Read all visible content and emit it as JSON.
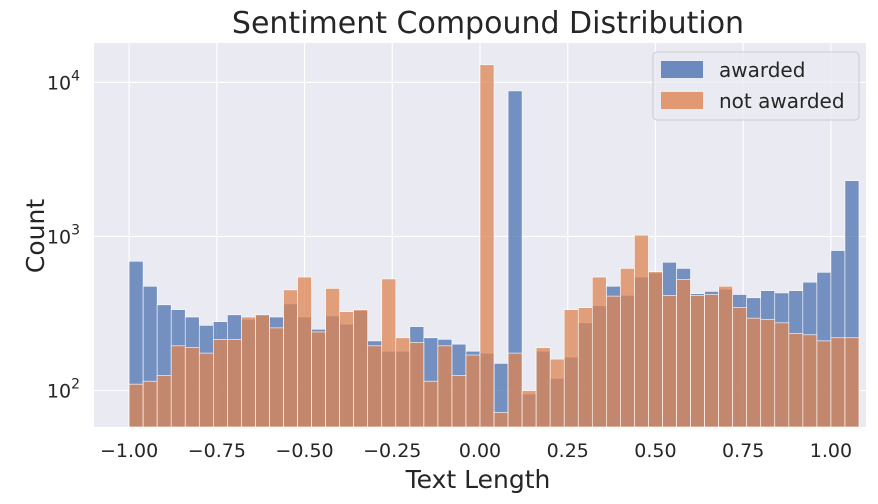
{
  "chart_data": {
    "type": "bar",
    "title": "Sentiment Compound Distribution",
    "xlabel": "Text Length",
    "ylabel": "Count",
    "yscale": "log",
    "xlim": [
      -1.1,
      1.1
    ],
    "ylim": [
      58,
      18000
    ],
    "x_ticks": [
      -1.0,
      -0.75,
      -0.5,
      -0.25,
      0.0,
      0.25,
      0.5,
      0.75,
      1.0
    ],
    "x_tick_labels": [
      "−1.00",
      "−0.75",
      "−0.50",
      "−0.25",
      "0.00",
      "0.25",
      "0.50",
      "0.75",
      "1.00"
    ],
    "y_ticks": [
      100,
      1000,
      10000
    ],
    "y_tick_bases": [
      "10",
      "10",
      "10"
    ],
    "y_tick_exponents": [
      "2",
      "3",
      "4"
    ],
    "grid": true,
    "legend_position": "top-right",
    "bin_start": -1.0,
    "bin_width": 0.04,
    "series": [
      {
        "name": "awarded",
        "color": "#4c72b0",
        "values": [
          690,
          475,
          360,
          335,
          300,
          265,
          280,
          310,
          290,
          310,
          300,
          365,
          300,
          250,
          305,
          270,
          330,
          210,
          180,
          180,
          260,
          220,
          215,
          200,
          180,
          175,
          150,
          8800,
          95,
          180,
          120,
          165,
          275,
          355,
          475,
          415,
          545,
          580,
          680,
          620,
          425,
          440,
          455,
          420,
          400,
          445,
          430,
          445,
          505,
          585,
          810,
          2300
        ]
      },
      {
        "name": "not awarded",
        "color": "#dd8452",
        "values": [
          110,
          115,
          125,
          195,
          190,
          175,
          215,
          215,
          300,
          310,
          255,
          450,
          545,
          240,
          460,
          325,
          335,
          195,
          530,
          220,
          205,
          115,
          195,
          125,
          170,
          13000,
          72,
          175,
          100,
          190,
          160,
          335,
          345,
          545,
          410,
          620,
          1020,
          590,
          415,
          525,
          415,
          420,
          475,
          345,
          295,
          290,
          275,
          235,
          230,
          210,
          220,
          220
        ]
      }
    ]
  }
}
